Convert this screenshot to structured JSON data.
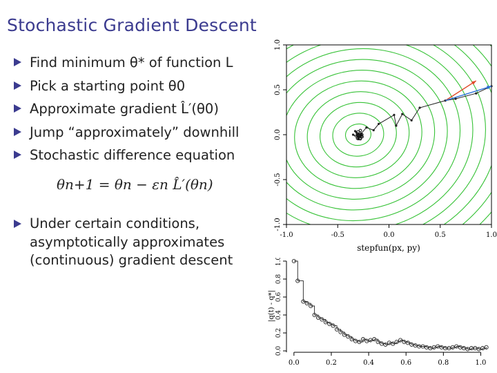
{
  "slide": {
    "title": "Stochastic Gradient Descent",
    "bullets": [
      "Find minimum θ* of function L",
      "Pick a starting point θ0",
      "Approximate gradient L̂′(θ0)",
      "Jump “approximately” downhill",
      "Stochastic difference equation"
    ],
    "equation": "θn+1 = θn − εn L̂′(θn)",
    "last_bullet_lines": [
      "Under certain conditions,",
      "asymptotically approximates",
      "(continuous) gradient descent"
    ]
  },
  "chart_data": [
    {
      "type": "contour",
      "xlabel": "stepfun(px, py)",
      "ylabel": "",
      "xlim": [
        -1.0,
        1.0
      ],
      "ylim": [
        -1.0,
        1.0
      ],
      "x_ticks": [
        "-1.0",
        "-0.5",
        "0.0",
        "0.5",
        "1.0"
      ],
      "y_ticks": [
        "-1.0",
        "-0.5",
        "0.0",
        "0.5",
        "1.0"
      ],
      "contour_color": "#36c236",
      "path": {
        "x": [
          1.0,
          0.85,
          0.65,
          0.55,
          0.3,
          0.22,
          0.13,
          0.07,
          0.05,
          -0.1,
          -0.15,
          -0.22,
          -0.28,
          -0.32,
          -0.3,
          -0.35,
          -0.29,
          -0.33,
          -0.27
        ],
        "y": [
          0.54,
          0.46,
          0.4,
          0.38,
          0.3,
          0.16,
          0.23,
          0.1,
          0.22,
          0.12,
          0.05,
          0.08,
          0.0,
          0.03,
          -0.05,
          0.0,
          -0.02,
          0.04,
          -0.01
        ]
      },
      "arrows": [
        {
          "color": "#e04a2a",
          "from": [
            0.55,
            0.38
          ],
          "to": [
            0.85,
            0.6
          ]
        },
        {
          "color": "#2a6fd8",
          "from": [
            0.55,
            0.38
          ],
          "to": [
            1.0,
            0.54
          ]
        }
      ]
    },
    {
      "type": "scatter",
      "ylabel": "|q(t) - q*|",
      "xlabel": "",
      "xlim": [
        -0.04,
        1.05
      ],
      "ylim": [
        0.0,
        1.0
      ],
      "x_ticks": [
        "0.0",
        "0.2",
        "0.4",
        "0.6",
        "0.8",
        "1.0"
      ],
      "y_ticks": [
        "0.0",
        "0.2",
        "0.4",
        "0.6",
        "0.8",
        "1.0"
      ],
      "x": [
        0.0,
        0.02,
        0.05,
        0.07,
        0.09,
        0.11,
        0.13,
        0.15,
        0.17,
        0.19,
        0.21,
        0.23,
        0.25,
        0.27,
        0.29,
        0.31,
        0.33,
        0.35,
        0.37,
        0.39,
        0.41,
        0.43,
        0.45,
        0.47,
        0.49,
        0.51,
        0.53,
        0.55,
        0.57,
        0.59,
        0.61,
        0.63,
        0.65,
        0.67,
        0.69,
        0.71,
        0.73,
        0.75,
        0.77,
        0.79,
        0.81,
        0.83,
        0.85,
        0.87,
        0.89,
        0.91,
        0.93,
        0.95,
        0.97,
        0.99,
        1.01,
        1.03
      ],
      "y": [
        1.0,
        0.78,
        0.55,
        0.53,
        0.5,
        0.4,
        0.37,
        0.35,
        0.32,
        0.3,
        0.28,
        0.24,
        0.21,
        0.18,
        0.16,
        0.13,
        0.11,
        0.1,
        0.13,
        0.11,
        0.12,
        0.13,
        0.1,
        0.08,
        0.07,
        0.09,
        0.08,
        0.1,
        0.12,
        0.1,
        0.09,
        0.07,
        0.06,
        0.05,
        0.05,
        0.04,
        0.03,
        0.04,
        0.05,
        0.04,
        0.03,
        0.03,
        0.04,
        0.05,
        0.04,
        0.03,
        0.02,
        0.03,
        0.03,
        0.02,
        0.03,
        0.04
      ]
    }
  ]
}
